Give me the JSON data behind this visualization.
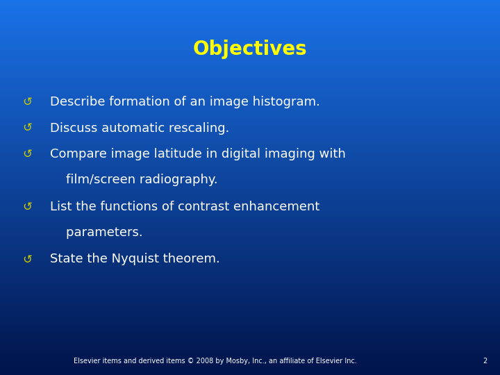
{
  "title": "Objectives",
  "title_color": "#FFFF00",
  "title_fontsize": 20,
  "bullet_items": [
    [
      "Describe formation of an image histogram."
    ],
    [
      "Discuss automatic rescaling."
    ],
    [
      "Compare image latitude in digital imaging with",
      "    film/screen radiography."
    ],
    [
      "List the functions of contrast enhancement",
      "    parameters."
    ],
    [
      "State the Nyquist theorem."
    ]
  ],
  "bullet_color": "#FFFFFF",
  "bullet_symbol_color": "#CCCC00",
  "bullet_fontsize": 13,
  "bullet_symbol": "↺",
  "footer_text": "Elsevier items and derived items © 2008 by Mosby, Inc., an affiliate of Elsevier Inc.",
  "footer_page": "2",
  "footer_color": "#FFFFFF",
  "footer_fontsize": 7,
  "bg_color_top": "#1A72E8",
  "bg_color_bottom": "#00134A",
  "fig_width": 7.2,
  "fig_height": 5.4,
  "dpi": 100
}
